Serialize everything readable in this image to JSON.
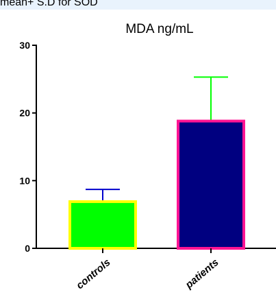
{
  "caption": "mean+ S.D for SOD",
  "chart_data": {
    "type": "bar",
    "title": "MDA  ng/mL",
    "categories": [
      "controls",
      "patients"
    ],
    "values": [
      6.9,
      18.8
    ],
    "error": [
      1.8,
      6.5
    ],
    "ylim": [
      0,
      30
    ],
    "yticks": [
      0,
      10,
      20,
      30
    ],
    "grid": false,
    "bar_fill": [
      "#00ff00",
      "#000080"
    ],
    "bar_edge": [
      "#ffff00",
      "#ff1493"
    ],
    "error_color": [
      "#0000cd",
      "#00ff00"
    ]
  }
}
